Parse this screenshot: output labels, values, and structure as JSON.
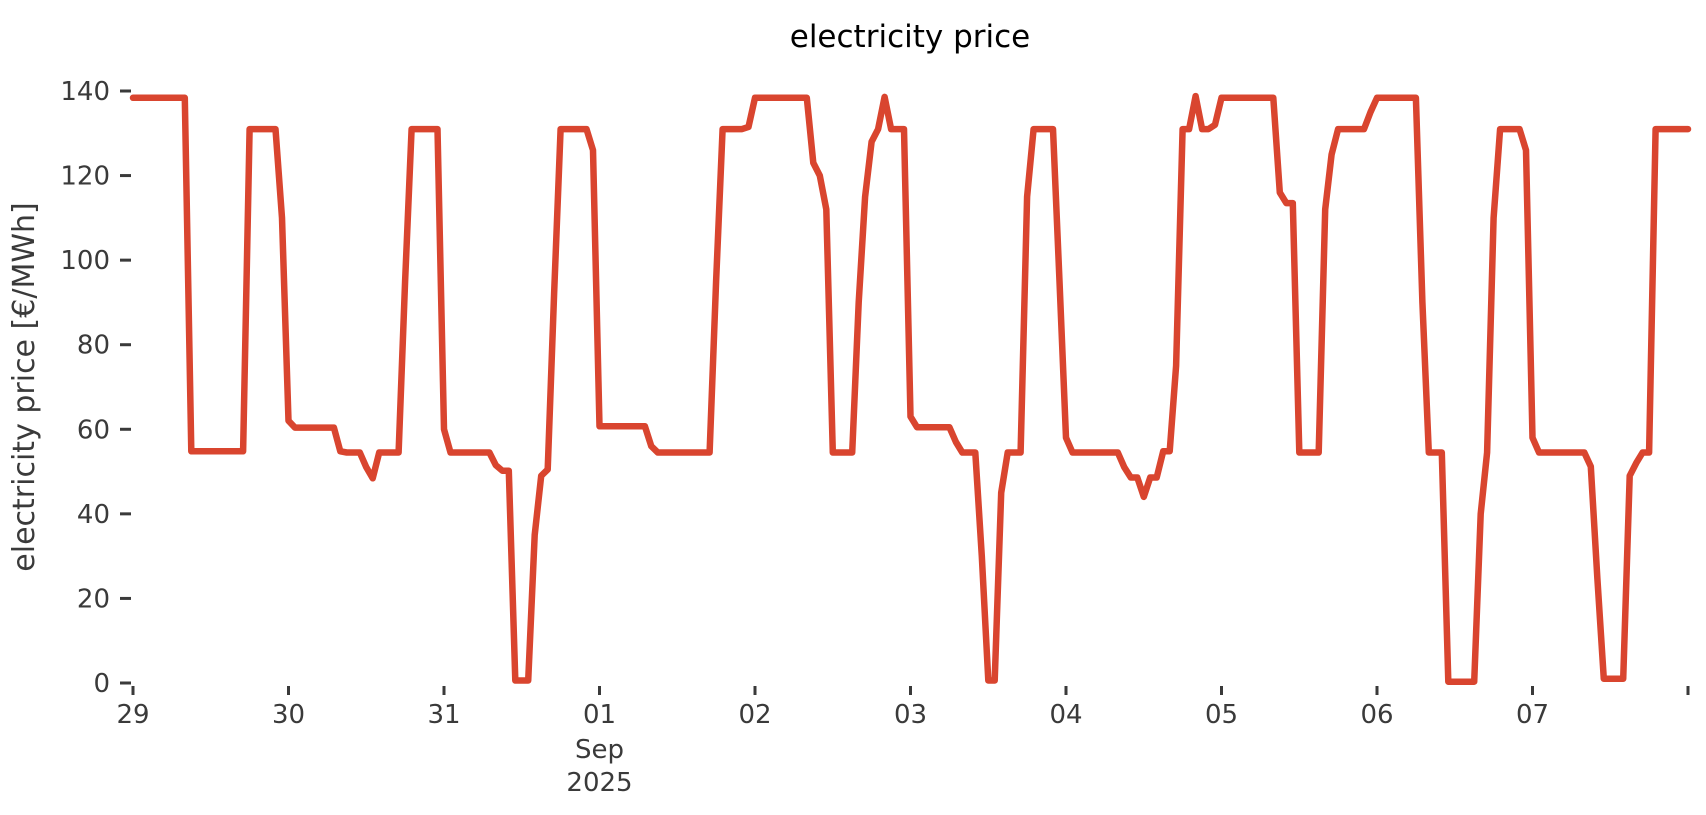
{
  "figure": {
    "title": "electricity price",
    "background_color": "#ffffff"
  },
  "chart_data": {
    "type": "line",
    "title": "electricity price",
    "xlabel": "",
    "ylabel": "electricity price [€/MWh]",
    "unit": "€/MWh",
    "line_color": "#d9452f",
    "tick_color": "#3a3a3a",
    "title_color": "#000000",
    "grid": false,
    "legend": false,
    "ylim": [
      0,
      140
    ],
    "yticks": [
      0,
      20,
      40,
      60,
      80,
      100,
      120,
      140
    ],
    "xticks": {
      "labels": [
        "29",
        "30",
        "31",
        "01",
        "02",
        "03",
        "04",
        "05",
        "06",
        "07"
      ],
      "hours_per_tick": 24,
      "trailing_unlabeled_tick": true
    },
    "month_label": {
      "lines": [
        "Sep",
        "2025"
      ],
      "under_tick_index": 3
    },
    "series": {
      "name": "electricity price",
      "start": "2025-08-29T00:00",
      "step_hours": 1,
      "values": [
        138.4,
        138.4,
        138.4,
        138.4,
        138.4,
        138.4,
        138.4,
        138.4,
        138.4,
        54.8,
        54.8,
        54.8,
        54.8,
        54.8,
        54.8,
        54.8,
        54.8,
        54.8,
        131,
        131,
        131,
        131,
        131,
        110,
        62,
        60.4,
        60.4,
        60.4,
        60.4,
        60.4,
        60.4,
        60.4,
        54.8,
        54.5,
        54.5,
        54.5,
        51,
        48.4,
        54.5,
        54.5,
        54.5,
        54.5,
        95,
        131,
        131,
        131,
        131,
        131,
        60,
        54.5,
        54.5,
        54.5,
        54.5,
        54.5,
        54.5,
        54.5,
        51.5,
        50.2,
        50.2,
        0.6,
        0.6,
        0.6,
        35,
        49,
        50.5,
        92,
        131,
        131,
        131,
        131,
        131,
        126,
        60.7,
        60.7,
        60.7,
        60.7,
        60.7,
        60.7,
        60.7,
        60.7,
        56,
        54.5,
        54.5,
        54.5,
        54.5,
        54.5,
        54.5,
        54.5,
        54.5,
        54.5,
        95,
        131,
        131,
        131,
        131,
        131.5,
        138.4,
        138.4,
        138.4,
        138.4,
        138.4,
        138.4,
        138.4,
        138.4,
        138.4,
        123,
        120,
        112,
        54.5,
        54.5,
        54.5,
        54.5,
        90,
        115,
        128,
        131,
        138.6,
        131,
        131,
        131,
        63,
        60.5,
        60.5,
        60.5,
        60.5,
        60.5,
        60.5,
        57,
        54.5,
        54.5,
        54.5,
        30,
        0.6,
        0.6,
        45,
        54.5,
        54.5,
        54.5,
        115,
        131,
        131,
        131,
        131,
        95,
        58,
        54.5,
        54.5,
        54.5,
        54.5,
        54.5,
        54.5,
        54.5,
        54.5,
        51,
        48.6,
        48.6,
        44,
        48.6,
        48.6,
        54.8,
        54.8,
        75,
        131,
        131,
        138.8,
        131,
        131,
        132,
        138.4,
        138.4,
        138.4,
        138.4,
        138.4,
        138.4,
        138.4,
        138.4,
        138.4,
        116,
        113.5,
        113.5,
        54.5,
        54.5,
        54.5,
        54.5,
        112,
        125,
        131,
        131,
        131,
        131,
        131,
        135,
        138.4,
        138.4,
        138.4,
        138.4,
        138.4,
        138.4,
        138.4,
        90,
        54.5,
        54.5,
        54.5,
        0.3,
        0.3,
        0.3,
        0.3,
        0.3,
        40,
        54.5,
        110,
        131,
        131,
        131,
        131,
        126,
        58,
        54.5,
        54.5,
        54.5,
        54.5,
        54.5,
        54.5,
        54.5,
        54.5,
        51.2,
        25,
        1,
        1,
        1,
        1,
        49,
        52,
        54.5,
        54.5,
        131,
        131,
        131,
        131,
        131,
        131
      ]
    }
  }
}
